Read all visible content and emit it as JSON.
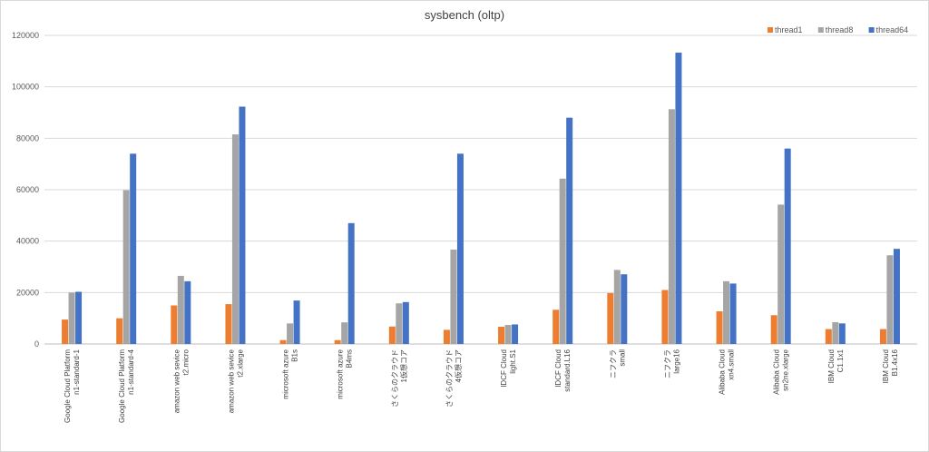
{
  "chart_data": {
    "type": "bar",
    "title": "sysbench (oltp)",
    "xlabel": "",
    "ylabel": "",
    "ylim": [
      0,
      120000
    ],
    "yticks": [
      "0",
      "20000",
      "40000",
      "60000",
      "80000",
      "100000",
      "120000"
    ],
    "grid": true,
    "legend_position": "top-right",
    "categories": [
      [
        "Google Cloud Platform",
        "n1-standard-1"
      ],
      [
        "Google Cloud Platform",
        "n1-standard-4"
      ],
      [
        "amazon web sevice",
        "t2.micro"
      ],
      [
        "amazon web sevice",
        "t2.xlarge"
      ],
      [
        "microsoft azure",
        "B1s"
      ],
      [
        "microsoft azure",
        "B4ms"
      ],
      [
        "さくらのクラウド",
        "1仮想コア"
      ],
      [
        "さくらのクラウド",
        "4仮想コア"
      ],
      [
        "IDCF Cloud",
        "light.S1"
      ],
      [
        "IDCF Cloud",
        "standard.L16"
      ],
      [
        "ニフクラ",
        "small"
      ],
      [
        "ニフクラ",
        "large16"
      ],
      [
        "Alibaba Cloud",
        "xn4.small"
      ],
      [
        "Alibaba Cloud",
        "sn2ne.xlarge"
      ],
      [
        "IBM Cloud",
        "C1.1x1"
      ],
      [
        "IBM Cloud",
        "B1.4x16"
      ]
    ],
    "series": [
      {
        "name": "thread1",
        "color": "#ed7d31",
        "values": [
          9500,
          10000,
          15000,
          15500,
          1500,
          1500,
          6800,
          5500,
          6700,
          13300,
          19800,
          21000,
          12700,
          11200,
          5800,
          5800
        ]
      },
      {
        "name": "thread8",
        "color": "#a5a5a5",
        "values": [
          20000,
          59800,
          26500,
          81500,
          8000,
          8400,
          15800,
          36700,
          7400,
          64300,
          28800,
          91300,
          24400,
          54200,
          8500,
          34500
        ]
      },
      {
        "name": "thread64",
        "color": "#4472c4",
        "values": [
          20300,
          74000,
          24400,
          92300,
          16900,
          47000,
          16300,
          74000,
          7600,
          88000,
          27100,
          113300,
          23500,
          76000,
          8000,
          37000
        ]
      }
    ]
  }
}
